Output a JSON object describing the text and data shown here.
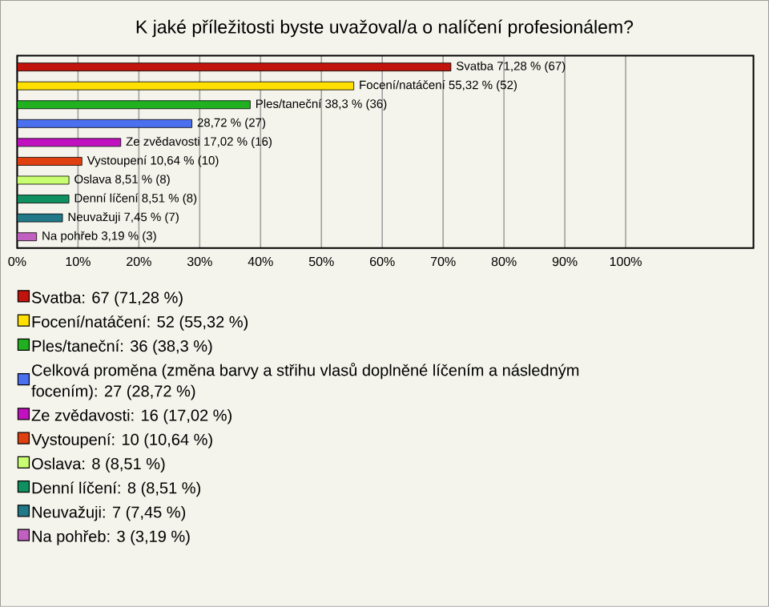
{
  "chart_data": {
    "type": "bar",
    "orientation": "horizontal",
    "title": "K jaké příležitosti byste uvažoval/a o nalíčení profesionálem?",
    "categories": [
      null,
      null,
      null,
      null,
      null,
      null,
      null,
      null,
      null,
      null
    ],
    "series": [
      {
        "name": "Svatba: 67 (71,28 %)",
        "color": "#c0140c",
        "values": [
          71.28,
          null,
          null,
          null,
          null,
          null,
          null,
          null,
          null,
          null
        ],
        "value_labels": [
          "Svatba 71,28 % (67)",
          null,
          null,
          null,
          null,
          null,
          null,
          null,
          null,
          null
        ]
      },
      {
        "name": "Focení/natáčení: 52 (55,32 %)",
        "color": "#ffe000",
        "values": [
          null,
          55.32,
          null,
          null,
          null,
          null,
          null,
          null,
          null,
          null
        ],
        "value_labels": [
          null,
          "Focení/natáčení 55,32 % (52)",
          null,
          null,
          null,
          null,
          null,
          null,
          null,
          null
        ]
      },
      {
        "name": "Ples/taneční: 36 (38,3 %)",
        "color": "#20b020",
        "values": [
          null,
          null,
          38.3,
          null,
          null,
          null,
          null,
          null,
          null,
          null
        ],
        "value_labels": [
          null,
          null,
          "Ples/taneční 38,3 % (36)",
          null,
          null,
          null,
          null,
          null,
          null,
          null
        ]
      },
      {
        "name": "Celková proměna (změna barvy a střihu vlasů doplněné líčením a následným focením): 27 (28,72 %)",
        "color": "#4a70f0",
        "values": [
          null,
          null,
          null,
          28.72,
          null,
          null,
          null,
          null,
          null,
          null
        ],
        "value_labels": [
          null,
          null,
          null,
          "28,72 % (27)",
          null,
          null,
          null,
          null,
          null,
          null
        ]
      },
      {
        "name": "Ze zvědavosti: 16 (17,02 %)",
        "color": "#c010c0",
        "values": [
          null,
          null,
          null,
          null,
          17.02,
          null,
          null,
          null,
          null,
          null
        ],
        "value_labels": [
          null,
          null,
          null,
          null,
          "Ze zvědavosti 17,02 % (16)",
          null,
          null,
          null,
          null,
          null
        ]
      },
      {
        "name": "Vystoupení: 10 (10,64 %)",
        "color": "#e04010",
        "values": [
          null,
          null,
          null,
          null,
          null,
          10.64,
          null,
          null,
          null,
          null
        ],
        "value_labels": [
          null,
          null,
          null,
          null,
          null,
          "Vystoupení 10,64 % (10)",
          null,
          null,
          null,
          null
        ]
      },
      {
        "name": "Oslava: 8 (8,51 %)",
        "color": "#c8ff70",
        "values": [
          null,
          null,
          null,
          null,
          null,
          null,
          8.51,
          null,
          null,
          null
        ],
        "value_labels": [
          null,
          null,
          null,
          null,
          null,
          null,
          "Oslava 8,51 % (8)",
          null,
          null,
          null
        ]
      },
      {
        "name": "Denní líčení: 8 (8,51 %)",
        "color": "#109060",
        "values": [
          null,
          null,
          null,
          null,
          null,
          null,
          null,
          8.51,
          null,
          null
        ],
        "value_labels": [
          null,
          null,
          null,
          null,
          null,
          null,
          null,
          "Denní líčení 8,51 % (8)",
          null,
          null
        ]
      },
      {
        "name": "Neuvažuji: 7 (7,45 %)",
        "color": "#207888",
        "values": [
          null,
          null,
          null,
          null,
          null,
          null,
          null,
          null,
          7.45,
          null
        ],
        "value_labels": [
          null,
          null,
          null,
          null,
          null,
          null,
          null,
          null,
          "Neuvažuji 7,45 % (7)",
          null
        ]
      },
      {
        "name": "Na pohřeb: 3 (3,19 %)",
        "color": "#c060c0",
        "values": [
          null,
          null,
          null,
          null,
          null,
          null,
          null,
          null,
          null,
          3.19
        ],
        "value_labels": [
          null,
          null,
          null,
          null,
          null,
          null,
          null,
          null,
          null,
          "Na pohřeb 3,19 % (3)"
        ]
      }
    ],
    "xlim": [
      0,
      121
    ],
    "xticks": [
      {
        "value": 0,
        "label": "0%"
      },
      {
        "value": 10,
        "label": "10%"
      },
      {
        "value": 20,
        "label": "20%"
      },
      {
        "value": 30,
        "label": "30%"
      },
      {
        "value": 40,
        "label": "40%"
      },
      {
        "value": 50,
        "label": "50%"
      },
      {
        "value": 60,
        "label": "60%"
      },
      {
        "value": 70,
        "label": "70%"
      },
      {
        "value": 80,
        "label": "80%"
      },
      {
        "value": 90,
        "label": "90%"
      },
      {
        "value": 100,
        "label": "100%"
      }
    ],
    "grid": "x",
    "legend": "bottom"
  }
}
